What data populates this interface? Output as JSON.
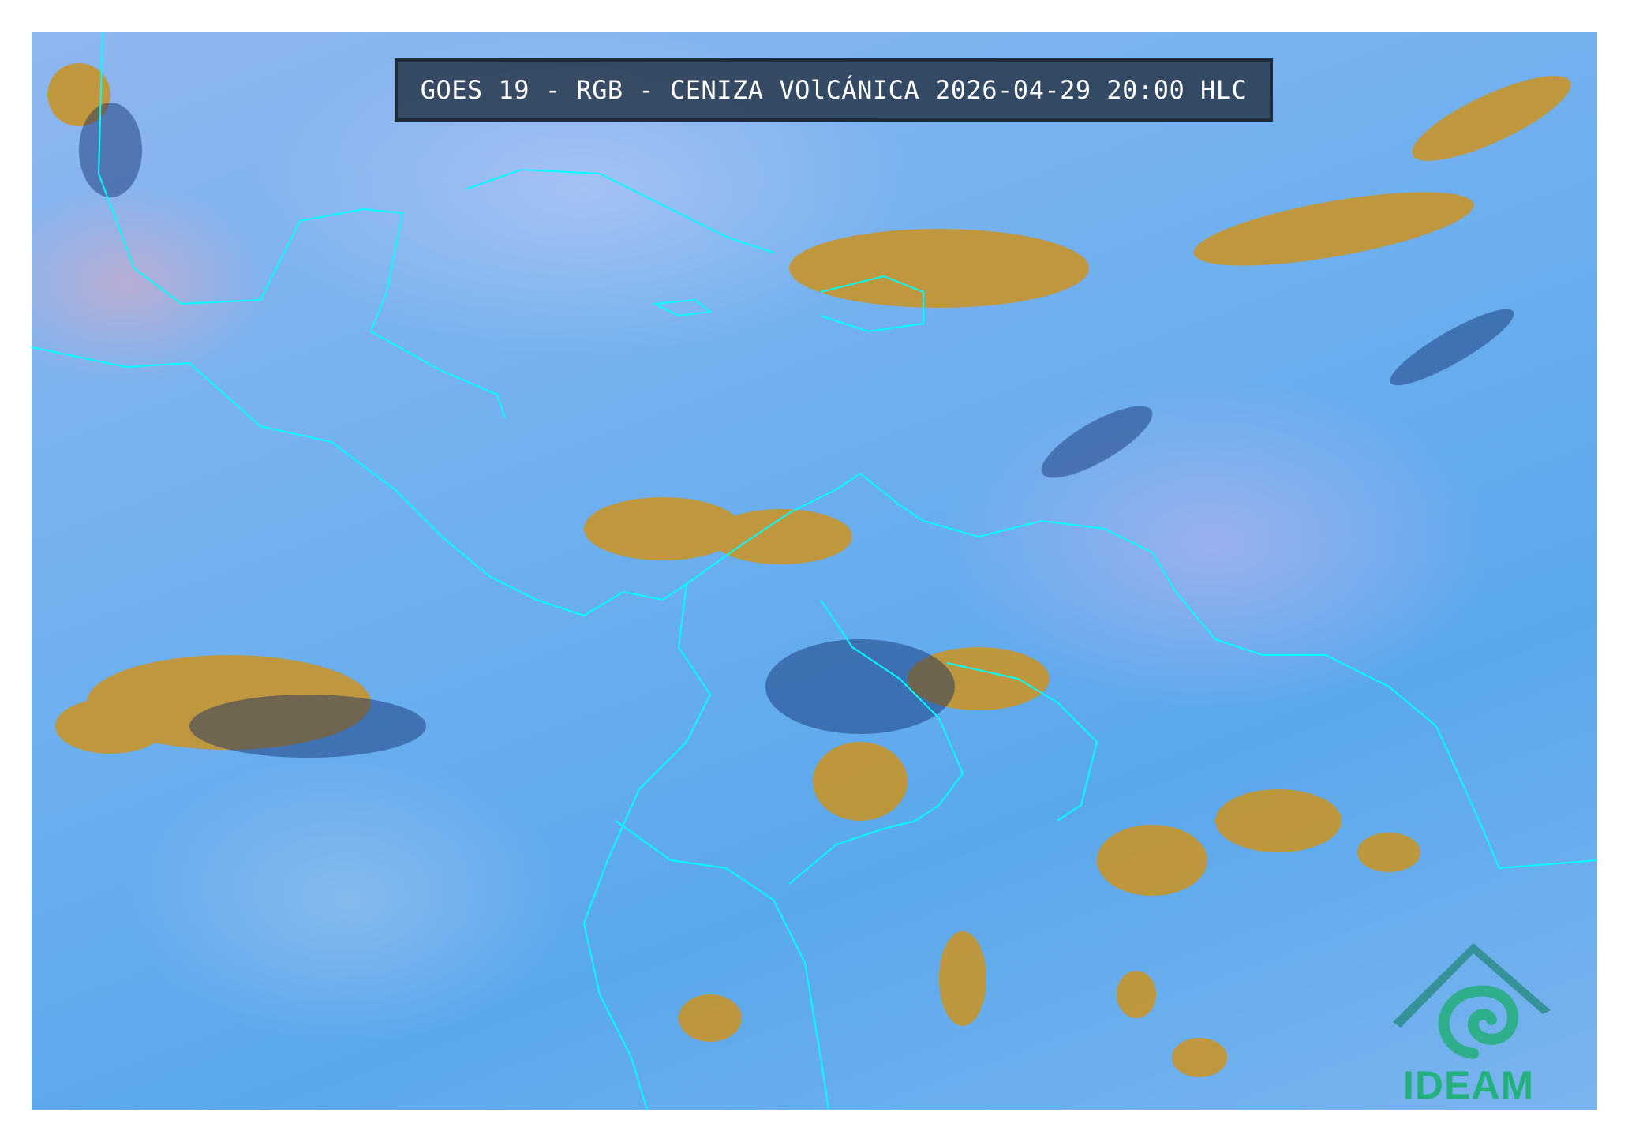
{
  "map": {
    "title": "GOES 19 - RGB - CENIZA VOlCÁNICA 2026-04-29 20:00 HLC",
    "product": "RGB Ceniza Volcánica",
    "satellite": "GOES 19",
    "border_color": "#00ffff",
    "cloud_color": "#c8952a",
    "background_color": "#6fb0ef"
  },
  "logo": {
    "text": "IDEAM",
    "color": "#22b07c"
  }
}
